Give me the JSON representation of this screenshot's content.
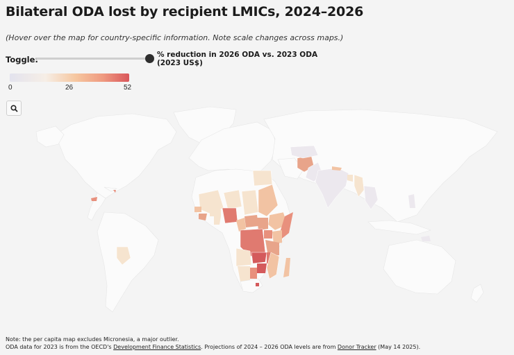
{
  "title": "Bilateral ODA lost by recipient LMICs, 2024–2026",
  "subtitle": "(Hover over the map for country-specific information. Note scale changes across maps.)",
  "toggle": {
    "label": "Toggle:",
    "option": "% reduction in 2026 ODA vs. 2023 ODA (2023 US$)"
  },
  "legend": {
    "ticks": [
      "0",
      "26",
      "52"
    ],
    "color_low": "#e3e3ee",
    "color_mid": "#f6c7a0",
    "color_high": "#d9565b"
  },
  "search_button": {
    "icon": "search-icon"
  },
  "notes": {
    "line1": "Note: the per capita map excludes Micronesia, a major outlier.",
    "line2_prefix": "ODA data for 2023 is from the OECD's ",
    "line2_link1": "Development Finance Statistics",
    "line2_middle": ". Projections of 2024 – 2026 ODA levels are from ",
    "line2_link2": "Donor Tracker",
    "line2_suffix": " (May 14 2025)."
  },
  "colors": {
    "background": "#f4f4f4",
    "land_no_data": "#fbfbfb",
    "low": "#ece8ee",
    "light": "#f6e4cf",
    "medium": "#f2c3a3",
    "strong": "#e8907d",
    "high": "#d45a5c"
  }
}
